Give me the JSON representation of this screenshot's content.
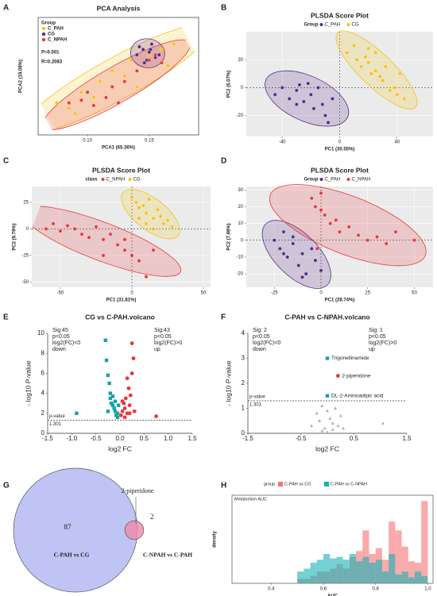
{
  "chart_data": [
    {
      "panel": "A",
      "type": "scatter",
      "title": "PCA Analysis",
      "x_label": "PCA1 (65.36%)",
      "y_label": "PCA2 (19.08%)",
      "legend_title": "Group",
      "notes": [
        "P=0.001",
        "R=0.2083"
      ],
      "frame": "box",
      "xlim": [
        0.06,
        0.19
      ],
      "ylim": [
        -0.1,
        0.12
      ],
      "xticks": [
        {
          "value": 0.1,
          "label": "0.10"
        },
        0.15
      ],
      "series": [
        {
          "name": "C_PAH",
          "color": "#f0c419",
          "x": [
            0.075,
            0.085,
            0.095,
            0.105,
            0.11,
            0.12,
            0.13,
            0.135,
            0.15,
            0.16,
            0.165,
            0.17,
            0.09,
            0.14
          ],
          "y": [
            -0.04,
            -0.05,
            -0.02,
            -0.03,
            0.0,
            0.02,
            0.01,
            0.04,
            0.05,
            0.06,
            0.03,
            0.07,
            -0.06,
            -0.01
          ]
        },
        {
          "name": "CG",
          "color": "#5b2a86",
          "x": [
            0.14,
            0.145,
            0.15,
            0.155,
            0.148,
            0.142,
            0.152,
            0.158,
            0.146,
            0.151
          ],
          "y": [
            0.05,
            0.06,
            0.055,
            0.045,
            0.04,
            0.065,
            0.07,
            0.05,
            0.035,
            0.06
          ]
        },
        {
          "name": "C_NPAH",
          "color": "#e8383a",
          "x": [
            0.085,
            0.095,
            0.1,
            0.105,
            0.115,
            0.12,
            0.125,
            0.13,
            0.14,
            0.15,
            0.155,
            0.16
          ],
          "y": [
            -0.04,
            -0.035,
            -0.02,
            -0.045,
            -0.03,
            -0.01,
            -0.04,
            0.0,
            0.02,
            0.04,
            0.05,
            0.035
          ]
        }
      ]
    },
    {
      "panel": "B",
      "type": "scatter",
      "title": "PLSDA Score Plot",
      "x_label": "PC1 (30.55%)",
      "y_label": "PC2 (6.07%)",
      "legend_title": "Group",
      "frame": "gray",
      "grid": true,
      "zero_lines": true,
      "xlim": [
        -65,
        65
      ],
      "ylim": [
        -35,
        40
      ],
      "xticks": [
        -40,
        0,
        40
      ],
      "yticks": [
        -20,
        0,
        20
      ],
      "series": [
        {
          "name": "C_PAH",
          "color": "#5b2a86",
          "x": [
            -45,
            -40,
            -35,
            -30,
            -28,
            -25,
            -20,
            -18,
            -15,
            -12,
            -10,
            -8,
            -5,
            -22,
            -30
          ],
          "y": [
            -5,
            0,
            -8,
            -2,
            2,
            -10,
            -5,
            -15,
            0,
            -12,
            -20,
            -25,
            -8,
            3,
            -12
          ]
        },
        {
          "name": "CG",
          "color": "#f0c419",
          "x": [
            5,
            10,
            12,
            15,
            18,
            20,
            22,
            25,
            28,
            30,
            32,
            35,
            38,
            40,
            42,
            45,
            20,
            25
          ],
          "y": [
            25,
            30,
            20,
            15,
            22,
            18,
            10,
            12,
            8,
            5,
            15,
            -2,
            0,
            -5,
            10,
            -8,
            28,
            25
          ]
        }
      ]
    },
    {
      "panel": "C",
      "type": "scatter",
      "title": "PLSDA Score Plot",
      "x_label": "PC1 (31.81%)",
      "y_label": "PC2 (9.79%)",
      "legend_title": "class",
      "frame": "gray",
      "grid": true,
      "zero_lines": true,
      "xlim": [
        -70,
        55
      ],
      "ylim": [
        -55,
        40
      ],
      "xticks": [
        -50,
        0,
        50
      ],
      "yticks": [
        -50,
        -25,
        0,
        25
      ],
      "series": [
        {
          "name": "C_NPAH",
          "color": "#e8383a",
          "x": [
            -60,
            -55,
            -50,
            -45,
            -40,
            -35,
            -30,
            -25,
            -20,
            -15,
            -10,
            -5,
            0,
            5,
            10,
            -20,
            -5,
            15
          ],
          "y": [
            0,
            5,
            -2,
            3,
            0,
            -5,
            -8,
            2,
            -10,
            -5,
            -15,
            -20,
            -25,
            -30,
            -45,
            -25,
            -10,
            -20
          ]
        },
        {
          "name": "CG",
          "color": "#f0c419",
          "x": [
            0,
            3,
            5,
            8,
            10,
            12,
            15,
            18,
            20,
            22,
            25,
            28,
            10,
            15,
            5
          ],
          "y": [
            30,
            25,
            20,
            22,
            15,
            28,
            10,
            18,
            12,
            5,
            8,
            2,
            5,
            0,
            10
          ]
        }
      ]
    },
    {
      "panel": "D",
      "type": "scatter",
      "title": "PLSDA Score Plot",
      "x_label": "PC1 (28.74%)",
      "y_label": "PC2 (7.98%)",
      "legend_title": "Group",
      "frame": "gray",
      "grid": true,
      "zero_lines": true,
      "xlim": [
        -40,
        60
      ],
      "ylim": [
        -28,
        32
      ],
      "xticks": [
        -25,
        0,
        25,
        50
      ],
      "yticks": [
        -20,
        -10,
        0,
        10,
        20,
        30
      ],
      "series": [
        {
          "name": "C_PAH",
          "color": "#5b2a86",
          "x": [
            -25,
            -22,
            -20,
            -18,
            -15,
            -12,
            -10,
            -8,
            -5,
            -3,
            0,
            -15,
            -20,
            -10
          ],
          "y": [
            0,
            -5,
            5,
            -10,
            -2,
            -15,
            -8,
            -20,
            -5,
            -12,
            -18,
            2,
            -8,
            -22
          ]
        },
        {
          "name": "C_NPAH",
          "color": "#e8383a",
          "x": [
            -5,
            -3,
            0,
            2,
            5,
            8,
            10,
            15,
            20,
            25,
            30,
            40,
            50,
            0,
            -2,
            35
          ],
          "y": [
            25,
            20,
            28,
            15,
            10,
            12,
            5,
            8,
            3,
            0,
            2,
            5,
            0,
            18,
            -5,
            -2
          ]
        }
      ]
    },
    {
      "panel": "E",
      "type": "volcano",
      "title": "CG vs C-PAH.volcano",
      "x_label": "log2 FC",
      "y_label": "- log10 P-value",
      "threshold": 1.301,
      "threshold_label": "p-value",
      "left_note": [
        "Sig:45",
        "p<0.05",
        "log2(FC)<0",
        "down"
      ],
      "right_note": [
        "Sig:43",
        "p<0.05",
        "log2(FC)>0",
        "up"
      ],
      "xlim": [
        -1.5,
        1.5
      ],
      "ylim": [
        0,
        10
      ],
      "xticks": [
        -1.5,
        {
          "value": -1,
          "label": "-1.0"
        },
        -0.5,
        {
          "value": 0,
          "label": "0.0"
        },
        0.5,
        {
          "value": 1,
          "label": "1.0"
        },
        1.5
      ],
      "yticks": [
        0,
        2,
        4,
        6,
        8,
        10
      ],
      "series": [
        {
          "name": "down",
          "color": "#14a3a8",
          "marker": "square",
          "x": [
            -0.9,
            -0.3,
            -0.28,
            -0.25,
            -0.22,
            -0.2,
            -0.18,
            -0.15,
            -0.12,
            -0.1,
            -0.08,
            -0.05,
            -0.03,
            -0.2,
            -0.15,
            -0.1,
            -0.25,
            -0.05
          ],
          "y": [
            2,
            9.3,
            7.3,
            5.8,
            5,
            3.5,
            3,
            2.8,
            2.5,
            2.2,
            1.8,
            1.6,
            2.8,
            4,
            3.7,
            3.2,
            2.2,
            2.0
          ]
        },
        {
          "name": "up",
          "color": "#e8383a",
          "marker": "circle",
          "x": [
            0.02,
            0.05,
            0.08,
            0.1,
            0.12,
            0.15,
            0.18,
            0.2,
            0.22,
            0.25,
            0.28,
            0.3,
            0.1,
            0.15,
            0.2,
            0.75,
            0.05,
            0.25
          ],
          "y": [
            1.8,
            2.2,
            3,
            2.5,
            3.5,
            2.0,
            4.5,
            2.8,
            3.8,
            9,
            7.5,
            2.2,
            1.6,
            5.5,
            2.0,
            1.7,
            3.2,
            6
          ]
        }
      ]
    },
    {
      "panel": "F",
      "type": "volcano",
      "title": "C-PAH vs C-NPAH.volcano",
      "x_label": "log2 FC",
      "y_label": "- log10 P-value",
      "threshold": 1.301,
      "threshold_label": "p-value",
      "left_note": [
        "Sig: 2",
        "p<0.05",
        "log2(FC)<0",
        "down"
      ],
      "right_note": [
        "Sig: 1",
        "p<0.05",
        "log2(FC)>0",
        "up"
      ],
      "xlim": [
        -1.5,
        1.5
      ],
      "ylim": [
        0,
        4
      ],
      "xticks": [
        -1.5,
        -0.5,
        0.5,
        1.5
      ],
      "yticks": [
        0,
        1,
        2,
        3,
        4
      ],
      "series": [
        {
          "name": "ns",
          "color": "#b0b0b0",
          "marker": "triangle",
          "x": [
            -0.3,
            -0.2,
            -0.15,
            -0.1,
            -0.05,
            0,
            0.05,
            0.1,
            0.15,
            0.2,
            0.25,
            0.3,
            -0.1,
            0.0,
            0.1,
            1.05
          ],
          "y": [
            0.3,
            0.8,
            0.5,
            1.1,
            0.2,
            0.9,
            0.6,
            0.4,
            1.0,
            0.3,
            0.7,
            0.2,
            0.1,
            0.05,
            0.15,
            0.4
          ]
        },
        {
          "name": "down",
          "color": "#14a3a8",
          "marker": "square",
          "x": [
            0.0,
            0.0
          ],
          "y": [
            3.0,
            1.5
          ],
          "labels": [
            "Trigonellinamide",
            "DL-2-Aminoadipic acid"
          ]
        },
        {
          "name": "up",
          "color": "#e8383a",
          "marker": "circle",
          "x": [
            0.2
          ],
          "y": [
            2.3
          ],
          "labels": [
            "2-piperidone"
          ]
        }
      ]
    },
    {
      "panel": "G",
      "type": "venn",
      "intersection_label": "2-piperidone",
      "sets": [
        {
          "name": "C-PAH vs CG",
          "count": 87,
          "color": "#aab0f0"
        },
        {
          "name": "C-NPAH vs C-PAH",
          "count": 2,
          "color": "#f08aa8"
        }
      ]
    },
    {
      "panel": "H",
      "type": "histogram",
      "title": "Metabolism AUC",
      "legend_title": "group",
      "x_label": "AUC",
      "y_label": "density",
      "xlim": [
        0.25,
        1.02
      ],
      "ylim": [
        0,
        6
      ],
      "xticks": [
        0.4,
        0.6,
        0.8,
        {
          "value": 1,
          "label": "1.0"
        }
      ],
      "bins": [
        0.5,
        0.525,
        0.55,
        0.575,
        0.6,
        0.625,
        0.65,
        0.675,
        0.7,
        0.725,
        0.75,
        0.775,
        0.8,
        0.825,
        0.85,
        0.875,
        0.9,
        0.925,
        0.95,
        0.975,
        1.0
      ],
      "series": [
        {
          "name": "C-PAH vs CG",
          "color": "#f4736f",
          "values": [
            0.3,
            0.3,
            0.5,
            0.8,
            0.8,
            1.0,
            1.3,
            1.0,
            1.8,
            2.2,
            3.6,
            2.0,
            2.4,
            1.6,
            4.2,
            3.6,
            2.5,
            1.5,
            1.4,
            5.6
          ]
        },
        {
          "name": "C-PAH vs C-NPAH",
          "color": "#14b3b8",
          "values": [
            0.8,
            1.0,
            1.4,
            1.6,
            2.0,
            1.7,
            1.8,
            1.6,
            2.0,
            1.5,
            1.8,
            1.4,
            1.6,
            0.8,
            2.0,
            0.6,
            0.8,
            0.4,
            0.8,
            0.5
          ]
        }
      ]
    }
  ]
}
